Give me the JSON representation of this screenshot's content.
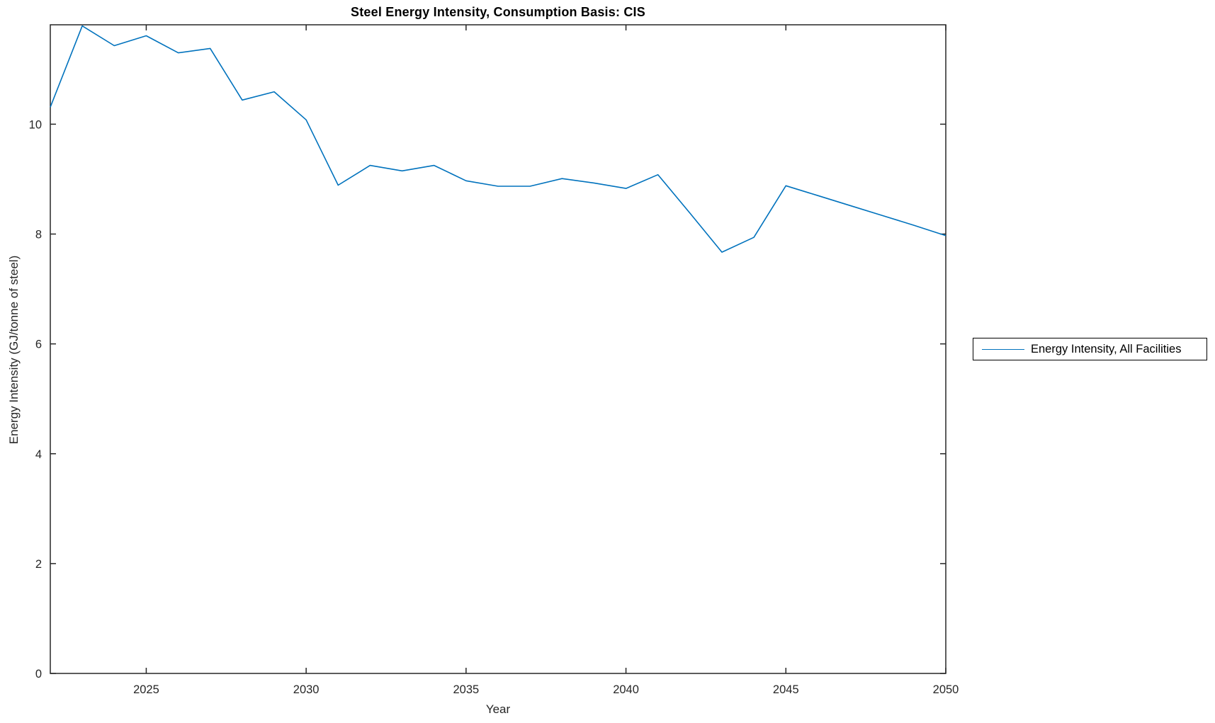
{
  "title": "Steel Energy Intensity, Consumption Basis: CIS",
  "chart_data": {
    "type": "line",
    "title": "Steel Energy Intensity, Consumption Basis: CIS",
    "xlabel": "Year",
    "ylabel": "Energy Intensity (GJ/tonne of steel)",
    "xlim": [
      2022,
      2050
    ],
    "ylim": [
      0,
      11.81
    ],
    "x_ticks": [
      2025,
      2030,
      2035,
      2040,
      2045,
      2050
    ],
    "y_ticks": [
      0,
      2,
      4,
      6,
      8,
      10
    ],
    "grid": false,
    "box": true,
    "tick_direction": "in",
    "axis_color": "#262626",
    "line_color": "#0072BD",
    "legend": {
      "position": "outside-right",
      "entries": [
        "Energy Intensity, All Facilities"
      ]
    },
    "series": [
      {
        "name": "Energy Intensity, All Facilities",
        "x": [
          2022,
          2023,
          2024,
          2025,
          2026,
          2027,
          2028,
          2029,
          2030,
          2031,
          2032,
          2033,
          2034,
          2035,
          2036,
          2037,
          2038,
          2039,
          2040,
          2041,
          2042,
          2043,
          2044,
          2045,
          2046,
          2047,
          2048,
          2049,
          2050
        ],
        "y": [
          10.31,
          11.79,
          11.43,
          11.61,
          11.3,
          11.38,
          10.44,
          10.59,
          10.08,
          8.89,
          9.25,
          9.15,
          9.25,
          8.97,
          8.87,
          8.87,
          9.01,
          8.93,
          8.83,
          9.08,
          8.38,
          7.67,
          7.94,
          8.88,
          8.7,
          8.52,
          8.34,
          8.16,
          7.97
        ]
      }
    ]
  }
}
